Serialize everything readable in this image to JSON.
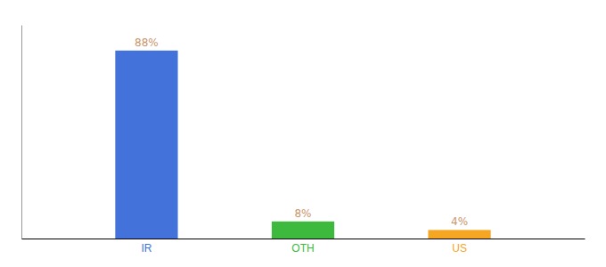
{
  "chart_data": {
    "type": "bar",
    "categories": [
      "IR",
      "OTH",
      "US"
    ],
    "values": [
      88,
      8,
      4
    ],
    "value_labels": [
      "88%",
      "8%",
      "4%"
    ],
    "colors": [
      "#4472db",
      "#3dba3d",
      "#f5a623"
    ],
    "ylim": [
      0,
      100
    ],
    "data_labels": true,
    "tick_labels": "x",
    "grid": false
  }
}
